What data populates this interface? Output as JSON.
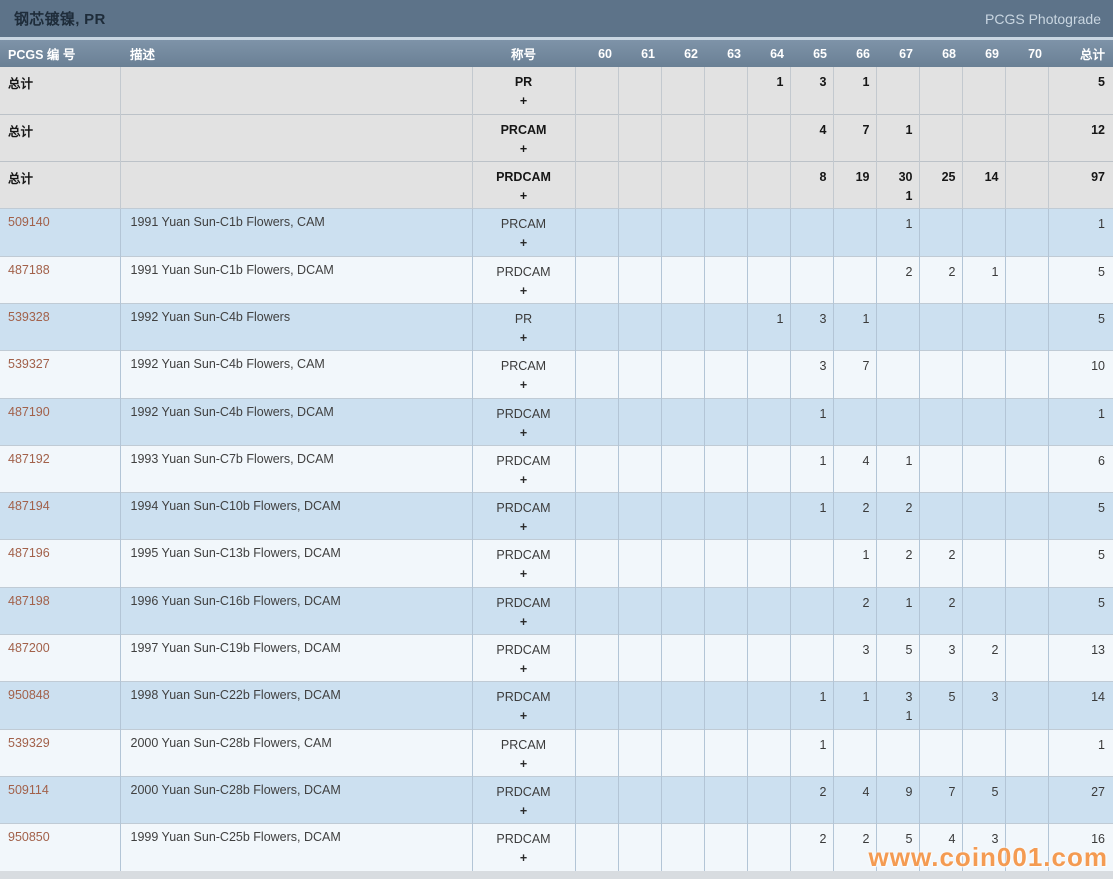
{
  "titlebar": {
    "title": "钢芯镀镍, PR",
    "photograde_link": "PCGS Photograde"
  },
  "table": {
    "headers": {
      "pcgs_number": "PCGS 编 号",
      "description": "描述",
      "designation": "称号",
      "grades": [
        "60",
        "61",
        "62",
        "63",
        "64",
        "65",
        "66",
        "67",
        "68",
        "69",
        "70"
      ],
      "total": "总计"
    },
    "rows": [
      {
        "type": "summary",
        "pcgs": "总计",
        "description": "",
        "designation": "PR",
        "plus": "+",
        "counts": {
          "64": "1",
          "65": "3",
          "66": "1"
        },
        "plus_counts": {},
        "total": "5"
      },
      {
        "type": "summary",
        "pcgs": "总计",
        "description": "",
        "designation": "PRCAM",
        "plus": "+",
        "counts": {
          "65": "4",
          "66": "7",
          "67": "1"
        },
        "plus_counts": {},
        "total": "12"
      },
      {
        "type": "summary",
        "pcgs": "总计",
        "description": "",
        "designation": "PRDCAM",
        "plus": "+",
        "counts": {
          "65": "8",
          "66": "19",
          "67": "30",
          "68": "25",
          "69": "14"
        },
        "plus_counts": {
          "67": "1"
        },
        "total": "97"
      },
      {
        "type": "data",
        "pcgs": "509140",
        "description": "1991 Yuan Sun-C1b Flowers, CAM",
        "designation": "PRCAM",
        "plus": "+",
        "counts": {
          "67": "1"
        },
        "plus_counts": {},
        "total": "1"
      },
      {
        "type": "data",
        "pcgs": "487188",
        "description": "1991 Yuan Sun-C1b Flowers, DCAM",
        "designation": "PRDCAM",
        "plus": "+",
        "counts": {
          "67": "2",
          "68": "2",
          "69": "1"
        },
        "plus_counts": {},
        "total": "5"
      },
      {
        "type": "data",
        "pcgs": "539328",
        "description": "1992 Yuan Sun-C4b Flowers",
        "designation": "PR",
        "plus": "+",
        "counts": {
          "64": "1",
          "65": "3",
          "66": "1"
        },
        "plus_counts": {},
        "total": "5"
      },
      {
        "type": "data",
        "pcgs": "539327",
        "description": "1992 Yuan Sun-C4b Flowers, CAM",
        "designation": "PRCAM",
        "plus": "+",
        "counts": {
          "65": "3",
          "66": "7"
        },
        "plus_counts": {},
        "total": "10"
      },
      {
        "type": "data",
        "pcgs": "487190",
        "description": "1992 Yuan Sun-C4b Flowers, DCAM",
        "designation": "PRDCAM",
        "plus": "+",
        "counts": {
          "65": "1"
        },
        "plus_counts": {},
        "total": "1"
      },
      {
        "type": "data",
        "pcgs": "487192",
        "description": "1993 Yuan Sun-C7b Flowers, DCAM",
        "designation": "PRDCAM",
        "plus": "+",
        "counts": {
          "65": "1",
          "66": "4",
          "67": "1"
        },
        "plus_counts": {},
        "total": "6"
      },
      {
        "type": "data",
        "pcgs": "487194",
        "description": "1994 Yuan Sun-C10b Flowers, DCAM",
        "designation": "PRDCAM",
        "plus": "+",
        "counts": {
          "65": "1",
          "66": "2",
          "67": "2"
        },
        "plus_counts": {},
        "total": "5"
      },
      {
        "type": "data",
        "pcgs": "487196",
        "description": "1995 Yuan Sun-C13b Flowers, DCAM",
        "designation": "PRDCAM",
        "plus": "+",
        "counts": {
          "66": "1",
          "67": "2",
          "68": "2"
        },
        "plus_counts": {},
        "total": "5"
      },
      {
        "type": "data",
        "pcgs": "487198",
        "description": "1996 Yuan Sun-C16b Flowers, DCAM",
        "designation": "PRDCAM",
        "plus": "+",
        "counts": {
          "66": "2",
          "67": "1",
          "68": "2"
        },
        "plus_counts": {},
        "total": "5"
      },
      {
        "type": "data",
        "pcgs": "487200",
        "description": "1997 Yuan Sun-C19b Flowers, DCAM",
        "designation": "PRDCAM",
        "plus": "+",
        "counts": {
          "66": "3",
          "67": "5",
          "68": "3",
          "69": "2"
        },
        "plus_counts": {},
        "total": "13"
      },
      {
        "type": "data",
        "pcgs": "950848",
        "description": "1998 Yuan Sun-C22b Flowers, DCAM",
        "designation": "PRDCAM",
        "plus": "+",
        "counts": {
          "65": "1",
          "66": "1",
          "67": "3",
          "68": "5",
          "69": "3"
        },
        "plus_counts": {
          "67": "1"
        },
        "total": "14"
      },
      {
        "type": "data",
        "pcgs": "539329",
        "description": "2000 Yuan Sun-C28b Flowers, CAM",
        "designation": "PRCAM",
        "plus": "+",
        "counts": {
          "65": "1"
        },
        "plus_counts": {},
        "total": "1"
      },
      {
        "type": "data",
        "pcgs": "509114",
        "description": "2000 Yuan Sun-C28b Flowers, DCAM",
        "designation": "PRDCAM",
        "plus": "+",
        "counts": {
          "65": "2",
          "66": "4",
          "67": "9",
          "68": "7",
          "69": "5"
        },
        "plus_counts": {},
        "total": "27"
      },
      {
        "type": "data",
        "pcgs": "950850",
        "description": "1999 Yuan Sun-C25b Flowers, DCAM",
        "designation": "PRDCAM",
        "plus": "+",
        "counts": {
          "65": "2",
          "66": "2",
          "67": "5",
          "68": "4",
          "69": "3"
        },
        "plus_counts": {},
        "total": "16"
      }
    ]
  },
  "watermark": "www.coin001.com",
  "colors": {
    "titlebar_bg": "#5d7389",
    "header_bg": "#73899f",
    "summary_row_bg": "#e2e2e2",
    "row_blue_bg": "#cce0f0",
    "row_light_bg": "#f2f7fb",
    "grid_border": "#b3c5d6",
    "title_text": "#1e2c3a",
    "photograde_link_text": "#c9d6e1",
    "pcgs_number_link": "#a2614a",
    "watermark_orange": "#f49b52"
  }
}
